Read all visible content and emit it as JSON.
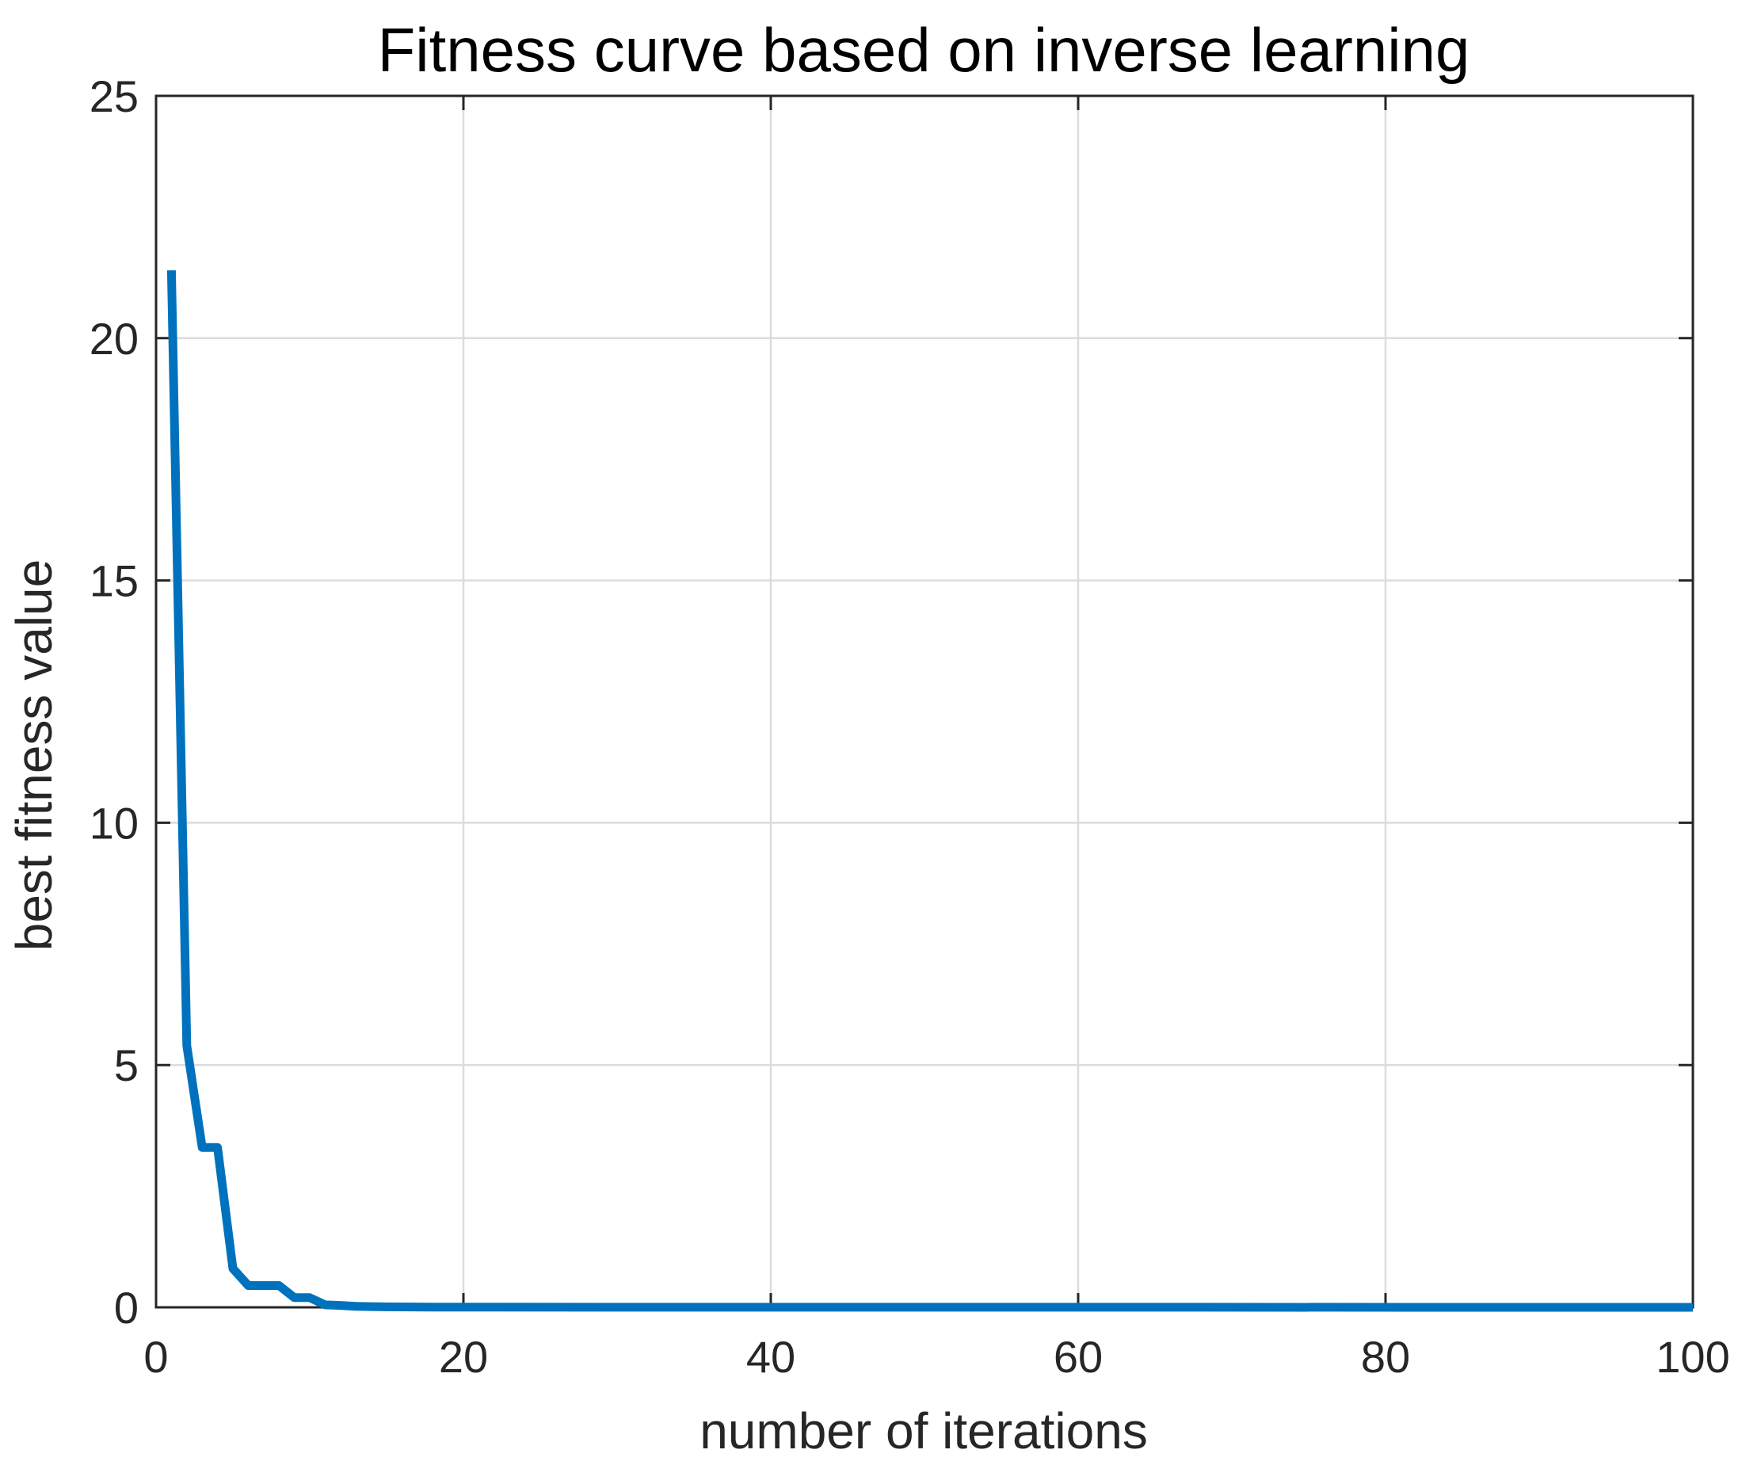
{
  "chart_data": {
    "type": "line",
    "title": "Fitness curve based on inverse learning",
    "xlabel": "number of iterations",
    "ylabel": "best fitness value",
    "xlim": [
      0,
      100
    ],
    "ylim": [
      0,
      25
    ],
    "xticks": [
      0,
      20,
      40,
      60,
      80,
      100
    ],
    "yticks": [
      0,
      5,
      10,
      15,
      20,
      25
    ],
    "grid": true,
    "series": [
      {
        "color": "#0072BD",
        "x": [
          1,
          2,
          3,
          4,
          5,
          6,
          7,
          8,
          9,
          10,
          11,
          12,
          13,
          14,
          15,
          16,
          17,
          18,
          19,
          20,
          100
        ],
        "y": [
          21.4,
          5.4,
          3.3,
          3.3,
          0.8,
          0.45,
          0.45,
          0.45,
          0.2,
          0.2,
          0.05,
          0.04,
          0.02,
          0.015,
          0.01,
          0.008,
          0.006,
          0.005,
          0.004,
          0.003,
          0.0
        ]
      }
    ]
  }
}
